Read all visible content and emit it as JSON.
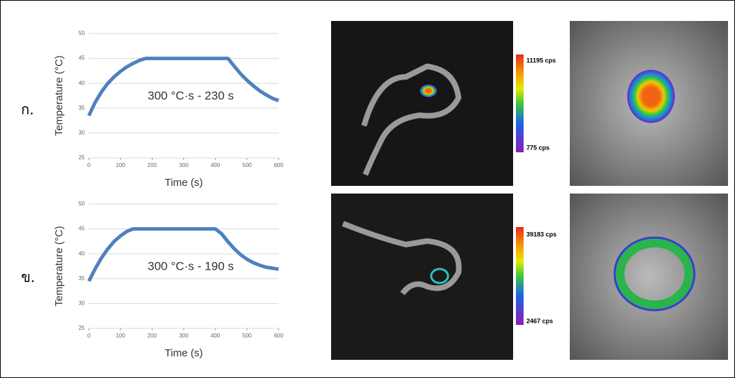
{
  "chart_data": [
    {
      "type": "line",
      "ylabel": "Temperature (°C)",
      "xlabel": "Time (s)",
      "annotation": "300 °C·s - 230 s",
      "x": [
        0,
        20,
        40,
        60,
        80,
        100,
        120,
        140,
        160,
        180,
        200,
        220,
        240,
        260,
        280,
        300,
        320,
        340,
        360,
        380,
        400,
        420,
        440,
        460,
        480,
        500,
        520,
        540,
        560,
        580,
        600
      ],
      "values": [
        33.5,
        36.2,
        38.3,
        40,
        41.3,
        42.4,
        43.3,
        44,
        44.6,
        45,
        45,
        45,
        45,
        45,
        45,
        45,
        45,
        45,
        45,
        45,
        45,
        45,
        45,
        43.4,
        41.9,
        40.6,
        39.5,
        38.5,
        37.7,
        37,
        36.5
      ],
      "color": "#4f81bd",
      "xlim": [
        0,
        600
      ],
      "ylim": [
        25,
        50
      ],
      "xticks": [
        0,
        100,
        200,
        300,
        400,
        500,
        600
      ],
      "yticks": [
        25,
        30,
        35,
        40,
        45,
        50
      ],
      "grid": true
    },
    {
      "type": "line",
      "ylabel": "Temperature (°C)",
      "xlabel": "Time (s)",
      "annotation": "300 °C·s - 190 s",
      "x": [
        0,
        20,
        40,
        60,
        80,
        100,
        120,
        140,
        160,
        180,
        200,
        220,
        240,
        260,
        280,
        300,
        320,
        340,
        360,
        380,
        400,
        420,
        440,
        460,
        480,
        500,
        520,
        540,
        560,
        580,
        600
      ],
      "values": [
        34.5,
        37,
        39.2,
        41,
        42.5,
        43.6,
        44.5,
        45,
        45,
        45,
        45,
        45,
        45,
        45,
        45,
        45,
        45,
        45,
        45,
        45,
        45,
        44,
        42.4,
        41,
        39.8,
        38.9,
        38.2,
        37.7,
        37.3,
        37.1,
        36.9
      ],
      "color": "#4f81bd",
      "xlim": [
        0,
        600
      ],
      "ylim": [
        25,
        50
      ],
      "xticks": [
        0,
        100,
        200,
        300,
        400,
        500,
        600
      ],
      "yticks": [
        25,
        30,
        35,
        40,
        45,
        50
      ],
      "grid": true
    }
  ],
  "panels": [
    {
      "label": "ก.",
      "colorbar_max": "11195 cps",
      "colorbar_min": "775 cps"
    },
    {
      "label": "ข.",
      "colorbar_max": "39183 cps",
      "colorbar_min": "2467 cps"
    }
  ]
}
